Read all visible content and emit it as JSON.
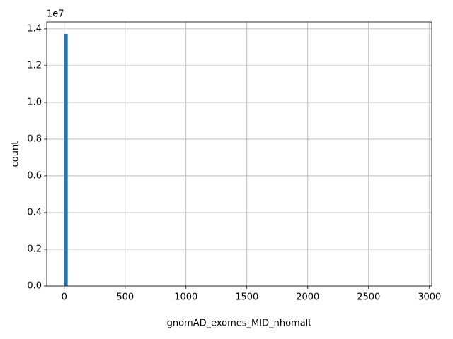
{
  "chart_data": {
    "type": "histogram",
    "xlabel": "gnomAD_exomes_MID_nhomalt",
    "ylabel": "count",
    "y_offset_label": "1e7",
    "color": "#1f77b4",
    "grid": true,
    "bins": [
      0,
      28.75,
      57.5,
      86.25,
      115,
      143.75,
      172.5,
      201.25,
      230,
      258.75,
      287.5,
      316.25,
      345,
      373.75,
      402.5,
      431.25,
      460,
      488.75,
      517.5,
      546.25,
      575,
      603.75,
      632.5,
      661.25,
      690,
      718.75,
      747.5,
      776.25,
      805,
      833.75,
      862.5,
      891.25,
      920,
      948.75,
      977.5,
      1006.25,
      1035,
      1063.75,
      1092.5,
      1121.25,
      1150,
      1178.75,
      1207.5,
      1236.25,
      1265,
      1293.75,
      1322.5,
      1351.25,
      1380,
      1408.75,
      1437.5,
      1466.25,
      1495,
      1523.75,
      1552.5,
      1581.25,
      1610,
      1638.75,
      1667.5,
      1696.25,
      1725,
      1753.75,
      1782.5,
      1811.25,
      1840,
      1868.75,
      1897.5,
      1926.25,
      1955,
      1983.75,
      2012.5,
      2041.25,
      2070,
      2098.75,
      2127.5,
      2156.25,
      2185,
      2213.75,
      2242.5,
      2271.25,
      2300,
      2328.75,
      2357.5,
      2386.25,
      2415,
      2443.75,
      2472.5,
      2501.25,
      2530,
      2558.75,
      2587.5,
      2616.25,
      2645,
      2673.75,
      2702.5,
      2731.25,
      2760,
      2788.75,
      2817.5,
      2846.25,
      2875
    ],
    "values": [
      13730000,
      0,
      0,
      0,
      0,
      0,
      0,
      0,
      0,
      0,
      0,
      0,
      0,
      0,
      0,
      0,
      0,
      0,
      0,
      0,
      0,
      0,
      0,
      0,
      0,
      0,
      0,
      0,
      0,
      0,
      0,
      0,
      0,
      0,
      0,
      0,
      0,
      0,
      0,
      0,
      0,
      0,
      0,
      0,
      0,
      0,
      0,
      0,
      0,
      0,
      0,
      0,
      0,
      0,
      0,
      0,
      0,
      0,
      0,
      0,
      0,
      0,
      0,
      0,
      0,
      0,
      0,
      0,
      0,
      0,
      0,
      0,
      0,
      0,
      0,
      0,
      0,
      0,
      0,
      0,
      0,
      0,
      0,
      0,
      0,
      0,
      0,
      0,
      0,
      0,
      0,
      0,
      0,
      0,
      0,
      0,
      0,
      0,
      0,
      0
    ],
    "xlim": [
      -143.75,
      3018.75
    ],
    "xticks": [
      0,
      500,
      1000,
      1500,
      2000,
      2500,
      3000
    ],
    "ylim": [
      0,
      14380000
    ],
    "yticks": [
      {
        "value": 0,
        "label": "0.0"
      },
      {
        "value": 2000000,
        "label": "0.2"
      },
      {
        "value": 4000000,
        "label": "0.4"
      },
      {
        "value": 6000000,
        "label": "0.6"
      },
      {
        "value": 8000000,
        "label": "0.8"
      },
      {
        "value": 10000000,
        "label": "1.0"
      },
      {
        "value": 12000000,
        "label": "1.2"
      },
      {
        "value": 14000000,
        "label": "1.4"
      }
    ]
  }
}
